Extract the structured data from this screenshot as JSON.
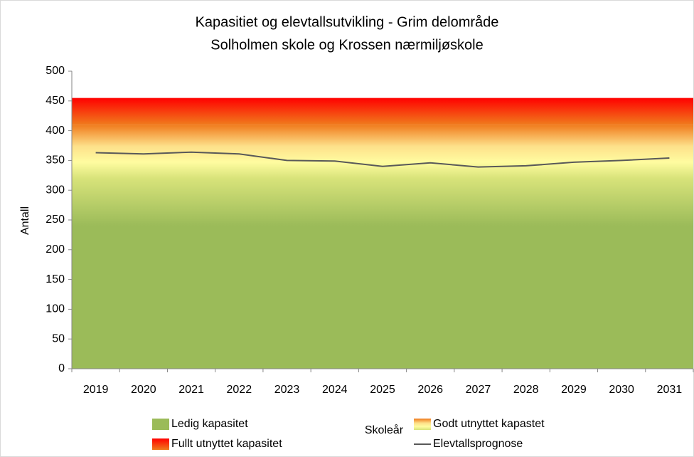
{
  "chart_data": {
    "type": "area-line",
    "title": [
      "Kapasitiet og elevtallsutvikling - Grim delområde",
      "Solholmen skole og Krossen nærmiljøskole"
    ],
    "x_label": "Skoleår",
    "y_label": "Antall",
    "categories": [
      "2019",
      "2020",
      "2021",
      "2022",
      "2023",
      "2024",
      "2025",
      "2026",
      "2027",
      "2028",
      "2029",
      "2030",
      "2031"
    ],
    "ylim": [
      0,
      500
    ],
    "yticks": [
      0,
      50,
      100,
      150,
      200,
      250,
      300,
      350,
      400,
      450,
      500
    ],
    "series": [
      {
        "name": "Ledig kapasitet",
        "kind": "stacked-area",
        "color": "#9bbb59",
        "values": [
          320,
          320,
          320,
          320,
          320,
          320,
          320,
          320,
          320,
          320,
          320,
          320,
          320
        ]
      },
      {
        "name": "Godt utnyttet kapastet",
        "kind": "stacked-area",
        "color": "#f79646",
        "values": [
          90,
          90,
          90,
          90,
          90,
          90,
          90,
          90,
          90,
          90,
          90,
          90,
          90
        ]
      },
      {
        "name": "Fullt utnyttet kapasitet",
        "kind": "stacked-area",
        "color": "#ff0000",
        "values": [
          45,
          45,
          45,
          45,
          45,
          45,
          45,
          45,
          45,
          45,
          45,
          45,
          45
        ]
      },
      {
        "name": "Elevtallsprognose",
        "kind": "line",
        "color": "#595959",
        "values": [
          363,
          361,
          364,
          361,
          350,
          349,
          340,
          346,
          339,
          341,
          347,
          350,
          354
        ]
      }
    ]
  }
}
